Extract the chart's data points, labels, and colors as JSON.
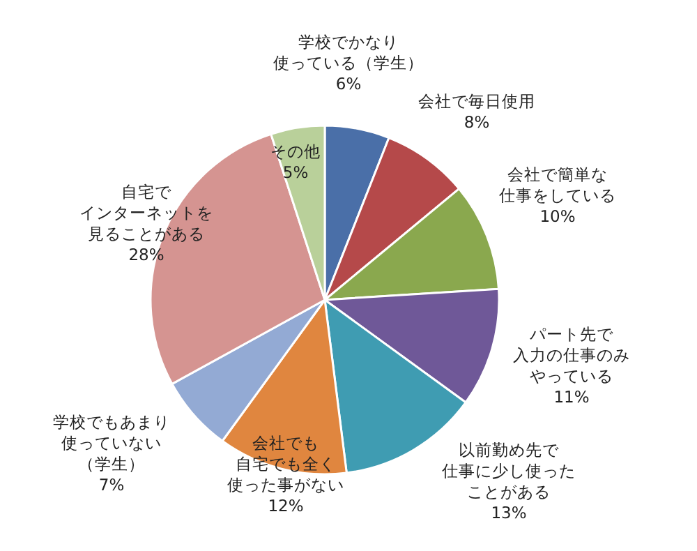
{
  "chart_data": {
    "type": "pie",
    "categories": [
      "学校でかなり使っている（学生）",
      "会社で毎日使用",
      "会社で簡単な仕事をしている",
      "パート先で入力の仕事のみやっている",
      "以前勤め先で仕事に少し使ったことがある",
      "会社でも自宅でも全く使った事がない",
      "学校でもあまり使っていない（学生）",
      "自宅でインターネットを見ることがある",
      "その他"
    ],
    "values": [
      6,
      8,
      10,
      11,
      13,
      12,
      7,
      28,
      5
    ],
    "value_labels": [
      "6%",
      "8%",
      "10%",
      "11%",
      "13%",
      "12%",
      "7%",
      "28%",
      "5%"
    ],
    "colors": [
      "#4a6fa8",
      "#b5494a",
      "#8aa84e",
      "#6f5898",
      "#3f9cb2",
      "#e0863f",
      "#93aad4",
      "#d59491",
      "#b9d09a"
    ]
  }
}
